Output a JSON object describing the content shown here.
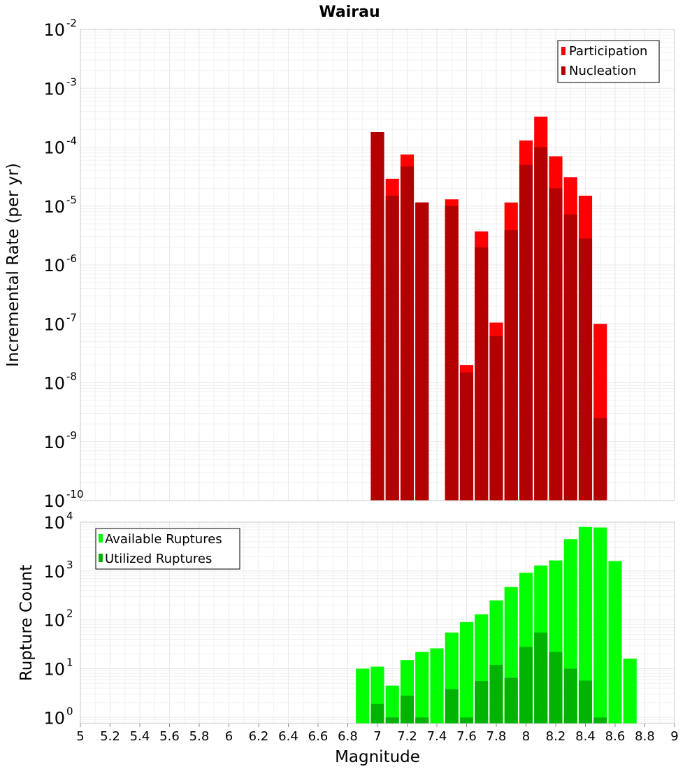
{
  "chart_data": [
    {
      "type": "bar",
      "title": "Wairau",
      "xlabel": "",
      "ylabel": "Incremental Rate (per yr)",
      "yscale": "log",
      "ylim": [
        1e-10,
        0.01
      ],
      "xlim": [
        5,
        9
      ],
      "x": [
        7.0,
        7.1,
        7.2,
        7.3,
        7.5,
        7.6,
        7.7,
        7.8,
        7.9,
        8.0,
        8.1,
        8.2,
        8.3,
        8.4,
        8.5
      ],
      "grid": true,
      "legend_position": "top-right",
      "series": [
        {
          "name": "Participation",
          "color": "#ff0000",
          "values": [
            0.00018,
            2.9e-05,
            7.5e-05,
            1.15e-05,
            1.3e-05,
            2e-08,
            3.7e-06,
            1.05e-07,
            1.15e-05,
            0.00013,
            0.00033,
            7e-05,
            3.1e-05,
            1.5e-05,
            1e-07
          ]
        },
        {
          "name": "Nucleation",
          "color": "#b30000",
          "values": [
            0.00018,
            1.5e-05,
            4.7e-05,
            1.15e-05,
            1e-05,
            1.5e-08,
            2e-06,
            6.2e-08,
            3.9e-06,
            5e-05,
            0.0001,
            2e-05,
            7.2e-06,
            2.8e-06,
            2.5e-09
          ]
        }
      ],
      "y_ticks": [
        {
          "base": "10",
          "exp": "-10",
          "value": 1e-10
        },
        {
          "base": "10",
          "exp": "-9",
          "value": 1e-09
        },
        {
          "base": "10",
          "exp": "-8",
          "value": 1e-08
        },
        {
          "base": "10",
          "exp": "-7",
          "value": 1e-07
        },
        {
          "base": "10",
          "exp": "-6",
          "value": 1e-06
        },
        {
          "base": "10",
          "exp": "-5",
          "value": 1e-05
        },
        {
          "base": "10",
          "exp": "-4",
          "value": 0.0001
        },
        {
          "base": "10",
          "exp": "-3",
          "value": 0.001
        },
        {
          "base": "10",
          "exp": "-2",
          "value": 0.01
        }
      ]
    },
    {
      "type": "bar",
      "title": "",
      "xlabel": "Magnitude",
      "ylabel": "Rupture Count",
      "yscale": "log",
      "ylim": [
        0.75,
        10000
      ],
      "xlim": [
        5,
        9
      ],
      "x": [
        6.9,
        7.0,
        7.1,
        7.2,
        7.3,
        7.4,
        7.5,
        7.6,
        7.7,
        7.8,
        7.9,
        8.0,
        8.1,
        8.2,
        8.3,
        8.4,
        8.5,
        8.6,
        8.7
      ],
      "grid": true,
      "legend_position": "top-left",
      "series": [
        {
          "name": "Available Ruptures",
          "color": "#00ff00",
          "values": [
            10,
            11,
            4.5,
            15,
            22,
            26,
            55,
            90,
            130,
            250,
            470,
            920,
            1300,
            1650,
            4500,
            8000,
            7800,
            1600,
            16
          ]
        },
        {
          "name": "Utilized Ruptures",
          "color": "#00b300",
          "values": [
            0,
            1.9,
            1.0,
            2.8,
            1.0,
            0,
            3.8,
            1.0,
            5.6,
            12,
            6.5,
            28,
            55,
            22,
            10,
            5.7,
            1.0,
            0,
            0
          ]
        }
      ],
      "y_ticks": [
        {
          "base": "10",
          "exp": "0",
          "value": 1
        },
        {
          "base": "10",
          "exp": "1",
          "value": 10
        },
        {
          "base": "10",
          "exp": "2",
          "value": 100
        },
        {
          "base": "10",
          "exp": "3",
          "value": 1000
        },
        {
          "base": "10",
          "exp": "4",
          "value": 10000
        }
      ]
    }
  ],
  "x_ticks": [
    "5",
    "5.2",
    "5.4",
    "5.6",
    "5.8",
    "6",
    "6.2",
    "6.4",
    "6.6",
    "6.8",
    "7",
    "7.2",
    "7.4",
    "7.6",
    "7.8",
    "8",
    "8.2",
    "8.4",
    "8.6",
    "8.8",
    "9"
  ]
}
